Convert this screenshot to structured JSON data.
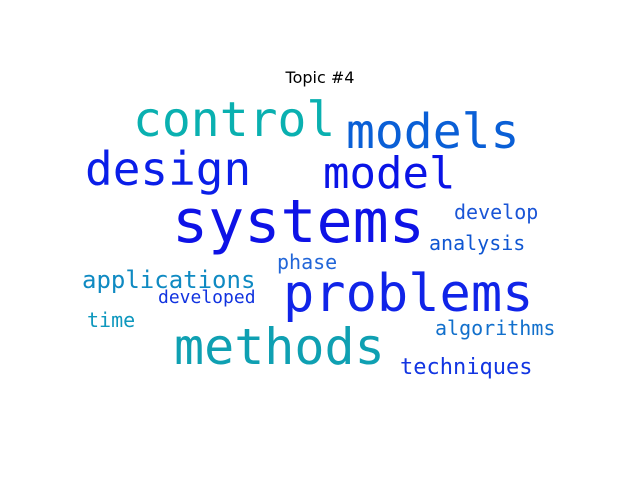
{
  "title": "Topic #4",
  "words": {
    "systems": {
      "text": "systems",
      "color": "#0e12e6"
    },
    "problems": {
      "text": "problems",
      "color": "#1024e8"
    },
    "methods": {
      "text": "methods",
      "color": "#0fa0b2"
    },
    "models": {
      "text": "models",
      "color": "#0a5fd6"
    },
    "control": {
      "text": "control",
      "color": "#0ab0b0"
    },
    "design": {
      "text": "design",
      "color": "#0a1ee8"
    },
    "model": {
      "text": "model",
      "color": "#0a14e6"
    },
    "develop": {
      "text": "develop",
      "color": "#1a55d6"
    },
    "analysis": {
      "text": "analysis",
      "color": "#0f56d2"
    },
    "applications": {
      "text": "applications",
      "color": "#0f8ac2"
    },
    "phase": {
      "text": "phase",
      "color": "#2266d8"
    },
    "developed": {
      "text": "developed",
      "color": "#1133e0"
    },
    "time": {
      "text": "time",
      "color": "#0f98be"
    },
    "algorithms": {
      "text": "algorithms",
      "color": "#1270cc"
    },
    "techniques": {
      "text": "techniques",
      "color": "#1235e2"
    }
  }
}
